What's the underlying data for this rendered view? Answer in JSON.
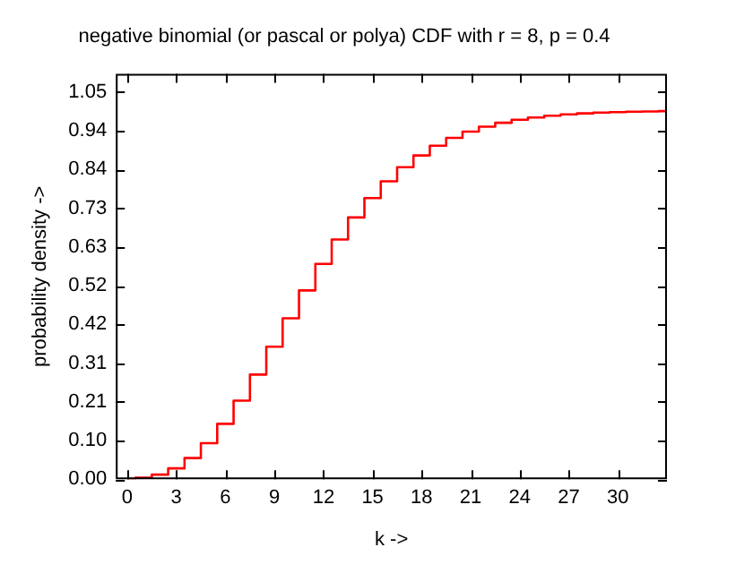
{
  "chart_data": {
    "type": "step",
    "title": "negative binomial (or pascal or polya) CDF with r = 8, p = 0.4",
    "xlabel": "k ->",
    "ylabel": "probability density ->",
    "x": [
      0,
      1,
      2,
      3,
      4,
      5,
      6,
      7,
      8,
      9,
      10,
      11,
      12,
      13,
      14,
      15,
      16,
      17,
      18,
      19,
      20,
      21,
      22,
      23,
      24,
      25,
      26,
      27,
      28,
      29,
      30,
      31,
      32,
      33
    ],
    "series": [
      {
        "color": "#ff0000",
        "values": [
          0.0007,
          0.0038,
          0.0123,
          0.0293,
          0.0573,
          0.0977,
          0.1501,
          0.2131,
          0.2839,
          0.3595,
          0.4366,
          0.5122,
          0.5841,
          0.6505,
          0.7102,
          0.7627,
          0.8081,
          0.8464,
          0.8784,
          0.9047,
          0.926,
          0.943,
          0.9565,
          0.967,
          0.9752,
          0.9814,
          0.9862,
          0.9898,
          0.9925,
          0.9946,
          0.996,
          0.9971,
          0.9979,
          0.9987
        ]
      }
    ],
    "xlim": [
      -0.7,
      33
    ],
    "xticks": [
      0,
      3,
      6,
      9,
      12,
      15,
      18,
      21,
      24,
      27,
      30
    ],
    "ylim": [
      0,
      1.1
    ],
    "yticks": [
      {
        "value": 0,
        "label": "0.00"
      },
      {
        "value": 0.105,
        "label": "0.10"
      },
      {
        "value": 0.21,
        "label": "0.21"
      },
      {
        "value": 0.315,
        "label": "0.31"
      },
      {
        "value": 0.42,
        "label": "0.42"
      },
      {
        "value": 0.525,
        "label": "0.52"
      },
      {
        "value": 0.63,
        "label": "0.63"
      },
      {
        "value": 0.735,
        "label": "0.73"
      },
      {
        "value": 0.84,
        "label": "0.84"
      },
      {
        "value": 0.945,
        "label": "0.94"
      },
      {
        "value": 1.05,
        "label": "1.05"
      }
    ],
    "grid": false,
    "legend": false
  }
}
